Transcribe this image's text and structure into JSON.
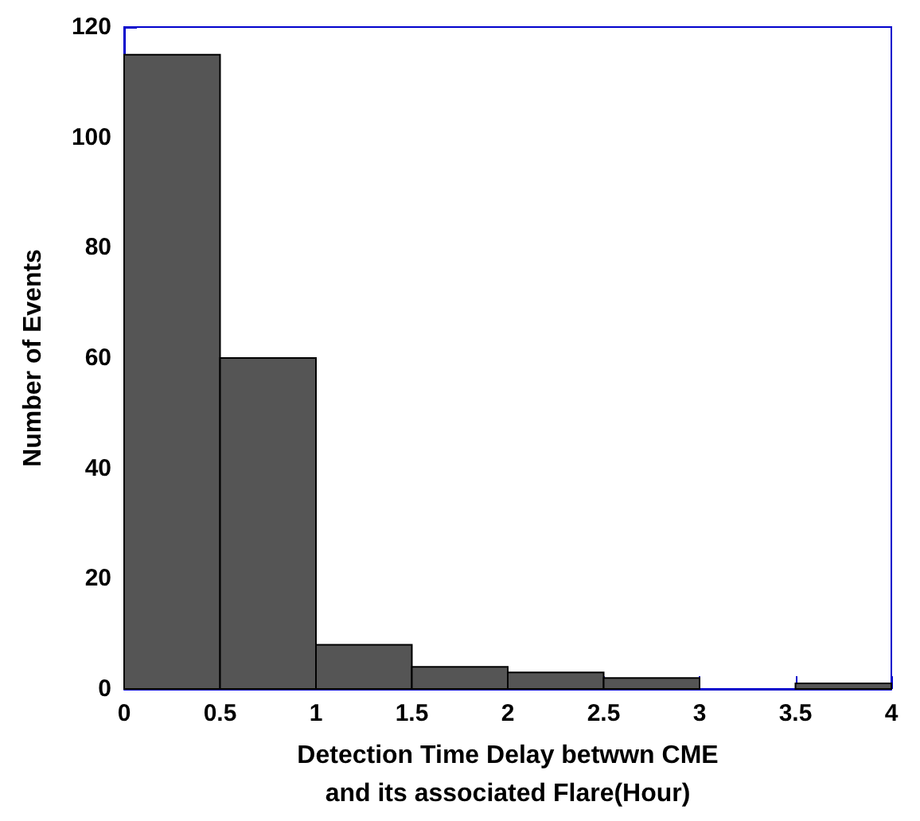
{
  "chart_data": {
    "type": "histogram",
    "xlabel": "Detection Time Delay betwwn CME\nand its associated Flare(Hour)",
    "ylabel": "Number of Events",
    "bins": [
      0,
      0.5,
      1,
      1.5,
      2,
      2.5,
      3,
      3.5,
      4
    ],
    "values": [
      115,
      60,
      8,
      4,
      3,
      2,
      0,
      1
    ],
    "color": "#555555",
    "xlim": [
      0,
      4
    ],
    "xticks": [
      0,
      0.5,
      1,
      1.5,
      2,
      2.5,
      3,
      3.5,
      4
    ],
    "ylim": [
      0,
      120
    ],
    "yticks": [
      0,
      20,
      40,
      60,
      80,
      100,
      120
    ],
    "grid": false
  }
}
